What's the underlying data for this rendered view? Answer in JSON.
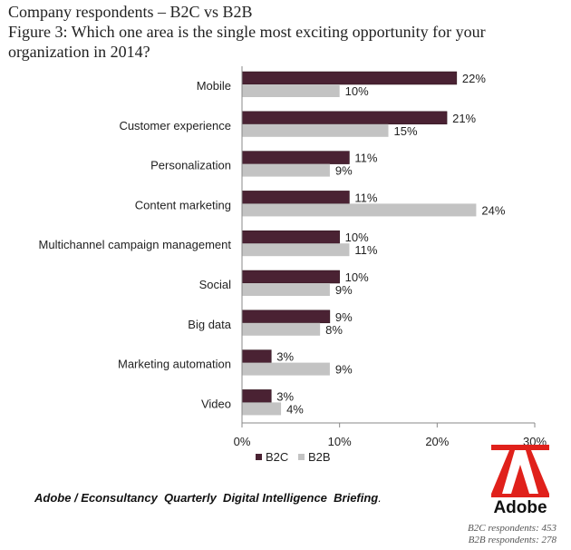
{
  "header": {
    "line1": "Company respondents – B2C vs B2B",
    "line2": "Figure 3: Which one area is the single most exciting opportunity for your",
    "line3": "organization in 2014?"
  },
  "chart_data": {
    "type": "bar",
    "orientation": "horizontal",
    "categories": [
      "Mobile",
      "Customer experience",
      "Personalization",
      "Content marketing",
      "Multichannel campaign management",
      "Social",
      "Big data",
      "Marketing automation",
      "Video"
    ],
    "series": [
      {
        "name": "B2C",
        "color": "#4a2233",
        "values": [
          22,
          21,
          11,
          11,
          10,
          10,
          9,
          3,
          3
        ]
      },
      {
        "name": "B2B",
        "color": "#c3c3c3",
        "values": [
          10,
          15,
          9,
          24,
          11,
          9,
          8,
          9,
          4
        ]
      }
    ],
    "value_labels": {
      "B2C": [
        "22%",
        "21%",
        "11%",
        "11%",
        "10%",
        "10%",
        "9%",
        "3%",
        "3%"
      ],
      "B2B": [
        "10%",
        "15%",
        "9%",
        "24%",
        "11%",
        "9%",
        "8%",
        "9%",
        "4%"
      ]
    },
    "xlim": [
      0,
      30
    ],
    "xticks": [
      0,
      10,
      20,
      30
    ],
    "xtick_labels": [
      "0%",
      "10%",
      "20%",
      "30%"
    ],
    "grid": false,
    "legend_position": "bottom"
  },
  "footer": {
    "source": "Adobe / Econsultancy  Quarterly  Digital Intelligence  Briefing",
    "source_end": ".",
    "logo_text": "Adobe",
    "respondents_b2c": "B2C respondents: 453",
    "respondents_b2b": "B2B respondents: 278"
  }
}
